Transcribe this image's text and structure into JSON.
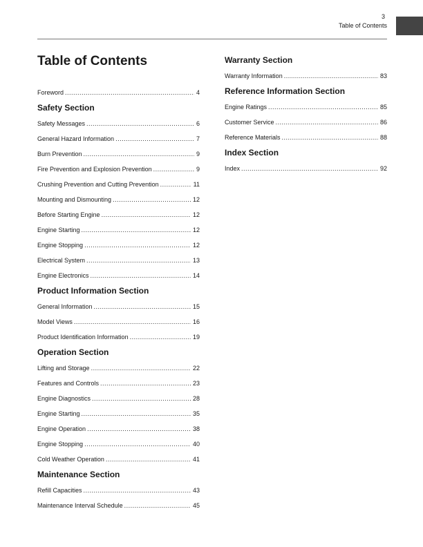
{
  "header": {
    "page_number": "3",
    "running_title": "Table of Contents"
  },
  "title": "Table of Contents",
  "left": [
    {
      "label": "Foreword",
      "page": "4"
    },
    {
      "heading": "Safety Section"
    },
    {
      "label": "Safety Messages",
      "page": "6"
    },
    {
      "label": "General Hazard Information",
      "page": "7"
    },
    {
      "label": "Burn Prevention",
      "page": "9"
    },
    {
      "label": "Fire Prevention and Explosion Prevention",
      "page": "9"
    },
    {
      "label": "Crushing Prevention and Cutting Prevention",
      "page": "11"
    },
    {
      "label": "Mounting and Dismounting",
      "page": "12"
    },
    {
      "label": "Before Starting Engine",
      "page": "12"
    },
    {
      "label": "Engine Starting",
      "page": "12"
    },
    {
      "label": "Engine Stopping",
      "page": "12"
    },
    {
      "label": "Electrical System",
      "page": "13"
    },
    {
      "label": "Engine Electronics",
      "page": "14"
    },
    {
      "heading": "Product Information Section"
    },
    {
      "label": "General Information",
      "page": "15"
    },
    {
      "label": "Model Views",
      "page": "16"
    },
    {
      "label": "Product Identification Information",
      "page": "19"
    },
    {
      "heading": "Operation Section"
    },
    {
      "label": "Lifting and Storage",
      "page": "22"
    },
    {
      "label": "Features and Controls",
      "page": "23"
    },
    {
      "label": "Engine Diagnostics",
      "page": "28"
    },
    {
      "label": "Engine Starting",
      "page": "35"
    },
    {
      "label": "Engine Operation",
      "page": "38"
    },
    {
      "label": "Engine Stopping",
      "page": "40"
    },
    {
      "label": "Cold Weather Operation",
      "page": "41"
    },
    {
      "heading": "Maintenance Section"
    },
    {
      "label": "Refill Capacities",
      "page": "43"
    },
    {
      "label": "Maintenance Interval Schedule",
      "page": "45"
    }
  ],
  "right": [
    {
      "heading": "Warranty Section"
    },
    {
      "label": "Warranty Information",
      "page": "83"
    },
    {
      "heading": "Reference Information Section"
    },
    {
      "label": "Engine Ratings",
      "page": "85"
    },
    {
      "label": "Customer Service",
      "page": "86"
    },
    {
      "label": "Reference Materials",
      "page": "88"
    },
    {
      "heading": "Index Section"
    },
    {
      "label": "Index",
      "page": "92"
    }
  ]
}
